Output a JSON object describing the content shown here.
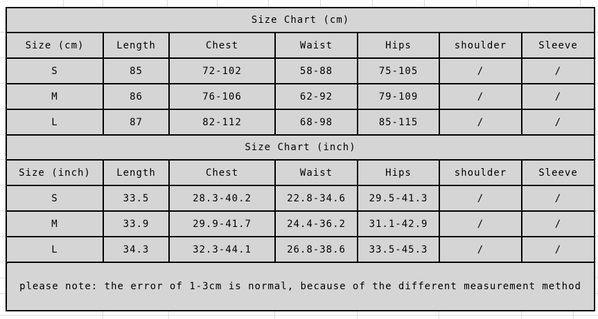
{
  "theme": {
    "page_bg": "#ffffff",
    "cell_bg": "#d5d5d5",
    "border_color": "#000000",
    "gridline_color": "#dcdcdc",
    "text_color": "#000000",
    "error_indicator_green": "#217346"
  },
  "note": "please note: the error of 1-3cm is normal, because of the different measurement method",
  "tables": {
    "cm": {
      "title": "Size Chart (cm)",
      "headers": [
        "Size (cm)",
        "Length",
        "Chest",
        "Waist",
        "Hips",
        "shoulder",
        "Sleeve"
      ],
      "rows": [
        [
          "S",
          "85",
          "72-102",
          "58-88",
          "75-105",
          "/",
          "/"
        ],
        [
          "M",
          "86",
          "76-106",
          "62-92",
          "79-109",
          "/",
          "/"
        ],
        [
          "L",
          "87",
          "82-112",
          "68-98",
          "85-115",
          "/",
          "/"
        ]
      ]
    },
    "inch": {
      "title": "Size Chart (inch)",
      "headers": [
        "Size (inch)",
        "Length",
        "Chest",
        "Waist",
        "Hips",
        "shoulder",
        "Sleeve"
      ],
      "rows": [
        [
          "S",
          "33.5",
          "28.3-40.2",
          "22.8-34.6",
          "29.5-41.3",
          "/",
          "/"
        ],
        [
          "M",
          "33.9",
          "29.9-41.7",
          "24.4-36.2",
          "31.1-42.9",
          "/",
          "/"
        ],
        [
          "L",
          "34.3",
          "32.3-44.1",
          "26.8-38.6",
          "33.5-45.3",
          "/",
          "/"
        ]
      ]
    }
  }
}
